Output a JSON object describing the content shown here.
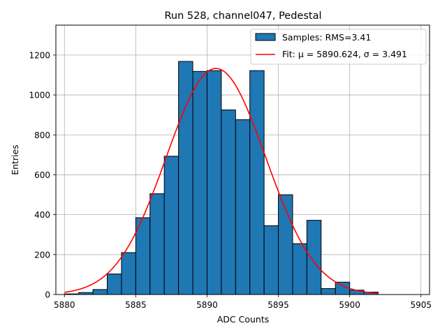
{
  "chart_data": {
    "type": "bar",
    "title": "Run 528, channel047, Pedestal",
    "xlabel": "ADC Counts",
    "ylabel": "Entries",
    "xlim": [
      5879.4,
      5905.6
    ],
    "ylim": [
      0,
      1350
    ],
    "xticks": [
      5880,
      5885,
      5890,
      5895,
      5900,
      5905
    ],
    "yticks": [
      0,
      200,
      400,
      600,
      800,
      1000,
      1200
    ],
    "grid": true,
    "legend_position": "top-right",
    "bin_width": 1,
    "bins": [
      5880,
      5881,
      5882,
      5883,
      5884,
      5885,
      5886,
      5887,
      5888,
      5889,
      5890,
      5891,
      5892,
      5893,
      5894,
      5895,
      5896,
      5897,
      5898,
      5899,
      5900,
      5901
    ],
    "series": [
      {
        "name": "Samples: RMS=3.41",
        "kind": "histogram",
        "color": "#1f77b4",
        "edgecolor": "#000000",
        "values": [
          3,
          10,
          25,
          103,
          210,
          385,
          505,
          693,
          1168,
          1118,
          1122,
          925,
          876,
          1122,
          345,
          500,
          255,
          372,
          30,
          62,
          22,
          12
        ]
      },
      {
        "name": "Fit: μ = 5890.624, σ = 3.491",
        "kind": "gaussian",
        "color": "#ff0000",
        "mu": 5890.624,
        "sigma": 3.491,
        "amplitude": 1133,
        "x_range": [
          5880,
          5902
        ]
      }
    ]
  }
}
